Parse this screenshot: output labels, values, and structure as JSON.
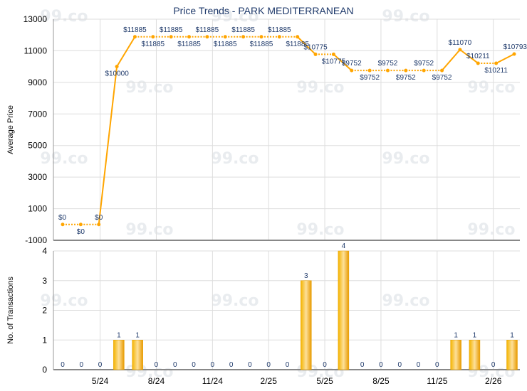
{
  "chart_data": [
    {
      "type": "line",
      "title": "Price Trends - PARK MEDITERRANEAN",
      "ylabel": "Average Price",
      "ylim": [
        -1000,
        13000
      ],
      "yticks": [
        -1000,
        1000,
        3000,
        5000,
        7000,
        9000,
        11000,
        13000
      ],
      "series": [
        {
          "values": [
            0,
            0,
            0,
            10000,
            11885,
            11885,
            11885,
            11885,
            11885,
            11885,
            11885,
            11885,
            11885,
            11885,
            10775,
            10775,
            9752,
            9752,
            9752,
            9752,
            9752,
            9752,
            11070,
            10211,
            10211,
            10793
          ],
          "labels": [
            "$0",
            "$0",
            "$0",
            "$10000",
            "$11885",
            "$11885",
            "$11885",
            "$11885",
            "$11885",
            "$11885",
            "$11885",
            "$11885",
            "$11885",
            "$11885",
            "$10775",
            "$10775",
            "$9752",
            "$9752",
            "$9752",
            "$9752",
            "$9752",
            "$9752",
            "$11070",
            "$10211",
            "$10211",
            "$10793"
          ],
          "color": "#ffa500"
        }
      ],
      "grid": true
    },
    {
      "type": "bar",
      "ylabel": "No. of Transactions",
      "ylim": [
        0,
        4
      ],
      "yticks": [
        0,
        1,
        2,
        3,
        4
      ],
      "values": [
        0,
        0,
        0,
        1,
        1,
        0,
        0,
        0,
        0,
        0,
        0,
        0,
        0,
        3,
        0,
        4,
        0,
        0,
        0,
        0,
        0,
        1,
        1,
        0,
        1
      ],
      "xtick_labels": [
        "5/24",
        "8/24",
        "11/24",
        "2/25",
        "5/25",
        "8/25",
        "11/25",
        "2/26"
      ],
      "color": "#f0a818",
      "grid": true
    }
  ],
  "watermark_text": "99.co"
}
